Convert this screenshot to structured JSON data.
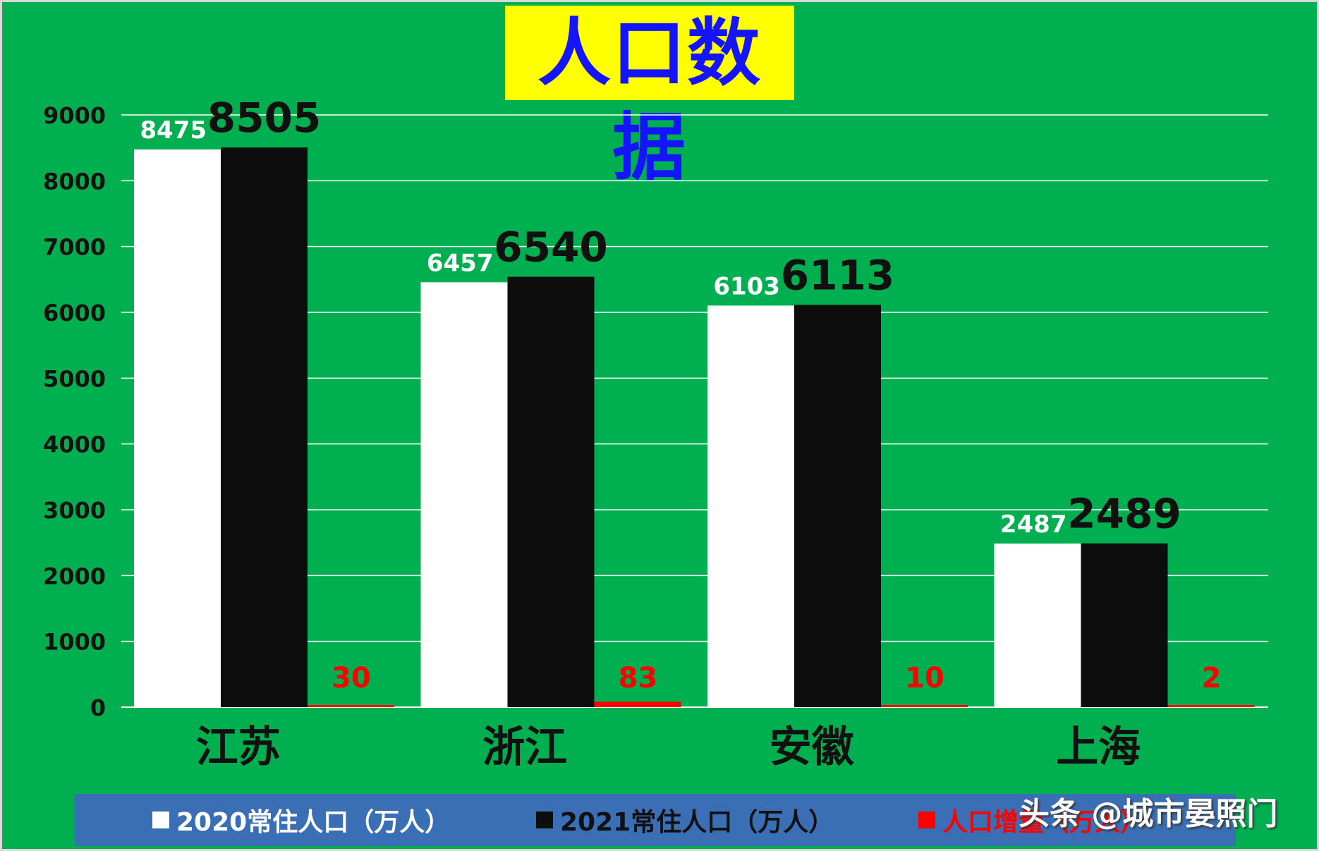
{
  "colors": {
    "background": "#00b050",
    "title_bg": "#ffff00",
    "title_text": "#1414ff",
    "gridline": "#ffffff",
    "legend_bg": "#3a6fb5"
  },
  "chart_data": {
    "type": "bar",
    "title": "人口数据",
    "xlabel": "",
    "ylabel": "",
    "ylim": [
      0,
      9000
    ],
    "yticks": [
      "0",
      "1000",
      "2000",
      "3000",
      "4000",
      "5000",
      "6000",
      "7000",
      "8000",
      "9000"
    ],
    "grid": true,
    "legend_position": "bottom",
    "categories": [
      "江苏",
      "浙江",
      "安徽",
      "上海"
    ],
    "series": [
      {
        "name": "2020常住人口（万人）",
        "color": "#ffffff",
        "label_color": "#ffffff",
        "values": [
          8475,
          6457,
          6103,
          2487
        ]
      },
      {
        "name": "2021常住人口（万人）",
        "color": "#0d0d0d",
        "label_color": "#111111",
        "values": [
          8505,
          6540,
          6113,
          2489
        ]
      },
      {
        "name": "人口增量（万人）",
        "color": "#ff0000",
        "label_color": "#ff0000",
        "values": [
          30,
          83,
          10,
          2
        ]
      }
    ]
  },
  "watermark": "头条 @城市晏照门"
}
